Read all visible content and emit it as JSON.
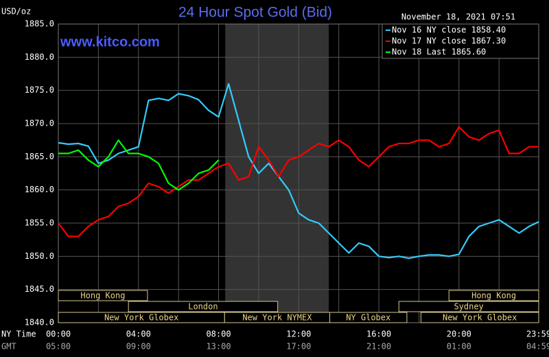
{
  "chart_data": {
    "type": "line",
    "title": "24 Hour Spot Gold (Bid)",
    "ylabel": "USD/oz",
    "timestamp": "November 18, 2021 07:51",
    "watermark": "www.kitco.com",
    "xlabel": "NY Time",
    "xlabel2": "GMT",
    "x": [
      0,
      0.5,
      1,
      1.5,
      2,
      2.5,
      3,
      3.5,
      4,
      4.5,
      5,
      5.5,
      6,
      6.5,
      7,
      7.5,
      8,
      8.5,
      9,
      9.5,
      10,
      10.5,
      11,
      11.5,
      12,
      12.5,
      13,
      13.5,
      14,
      14.5,
      15,
      15.5,
      16,
      16.5,
      17,
      17.5,
      18,
      18.5,
      19,
      19.5,
      20,
      20.5,
      21,
      21.5,
      22,
      22.5,
      23,
      23.5,
      23.98
    ],
    "xlim": [
      0,
      23.98
    ],
    "xticks": [
      {
        "value": 0,
        "label": "00:00"
      },
      {
        "value": 4,
        "label": "04:00"
      },
      {
        "value": 8,
        "label": "08:00"
      },
      {
        "value": 12,
        "label": "12:00"
      },
      {
        "value": 16,
        "label": "16:00"
      },
      {
        "value": 20,
        "label": "20:00"
      },
      {
        "value": 23.98,
        "label": "23:59"
      }
    ],
    "xticks2": [
      "05:00",
      "09:00",
      "13:00",
      "17:00",
      "21:00",
      "01:00",
      "04:59"
    ],
    "ylim": [
      1840,
      1885
    ],
    "yticks": [
      {
        "value": 1840,
        "label": "1840.0"
      },
      {
        "value": 1845,
        "label": "1845.0"
      },
      {
        "value": 1850,
        "label": "1850.0"
      },
      {
        "value": 1855,
        "label": "1855.0"
      },
      {
        "value": 1860,
        "label": "1860.0"
      },
      {
        "value": 1865,
        "label": "1865.0"
      },
      {
        "value": 1870,
        "label": "1870.0"
      },
      {
        "value": 1875,
        "label": "1875.0"
      },
      {
        "value": 1880,
        "label": "1880.0"
      },
      {
        "value": 1885,
        "label": "1885.0"
      }
    ],
    "grid": true,
    "legend": "top-right",
    "sessions": [
      "Hong Kong",
      "Hong Kong",
      "London",
      "Sydney",
      "New York Globex",
      "New York NYMEX",
      "NY Globex",
      "New York Globex"
    ],
    "series": [
      {
        "name": "Nov 16 NY close 1858.40",
        "color": "#33ccff",
        "values": [
          1867.1,
          1866.9,
          1867.0,
          1866.6,
          1864.0,
          1864.5,
          1865.5,
          1866.0,
          1866.5,
          1873.5,
          1873.8,
          1873.5,
          1874.5,
          1874.2,
          1873.6,
          1872.0,
          1871.0,
          1876.0,
          1870.5,
          1865.0,
          1862.5,
          1864.0,
          1862.0,
          1860.0,
          1856.5,
          1855.5,
          1855.0,
          1853.5,
          1852.0,
          1850.5,
          1852.0,
          1851.5,
          1850.0,
          1849.8,
          1850.0,
          1849.7,
          1850.0,
          1850.2,
          1850.2,
          1850.0,
          1850.3,
          1853.0,
          1854.5,
          1855.0,
          1855.5,
          1854.5,
          1853.5,
          1854.5,
          1855.2
        ]
      },
      {
        "name": "Nov 17 NY close 1867.30",
        "color": "#ff0000",
        "values": [
          1855.0,
          1853.0,
          1853.0,
          1854.5,
          1855.5,
          1856.0,
          1857.5,
          1858.0,
          1859.0,
          1861.0,
          1860.5,
          1859.5,
          1860.5,
          1861.5,
          1861.5,
          1862.5,
          1863.5,
          1864.0,
          1861.5,
          1862.0,
          1866.5,
          1864.5,
          1862.0,
          1864.5,
          1865.0,
          1866.0,
          1867.0,
          1866.5,
          1867.5,
          1866.5,
          1864.5,
          1863.5,
          1865.0,
          1866.5,
          1867.0,
          1867.0,
          1867.5,
          1867.5,
          1866.5,
          1867.0,
          1869.5,
          1868.0,
          1867.5,
          1868.5,
          1869.0,
          1865.5,
          1865.5,
          1866.5,
          1866.5
        ]
      },
      {
        "name": "Nov 18 Last 1865.60",
        "color": "#00ff00",
        "values": [
          1865.5,
          1865.5,
          1866.0,
          1864.5,
          1863.5,
          1865.0,
          1867.5,
          1865.5,
          1865.5,
          1865.0,
          1864.0,
          1861.0,
          1860.0,
          1861.0,
          1862.5,
          1863.0,
          1864.5,
          null,
          null,
          null,
          null,
          null,
          null,
          null,
          null,
          null,
          null,
          null,
          null,
          null,
          null,
          null,
          null,
          null,
          null,
          null,
          null,
          null,
          null,
          null,
          null,
          null,
          null,
          null,
          null,
          null,
          null,
          null,
          null
        ]
      }
    ]
  }
}
